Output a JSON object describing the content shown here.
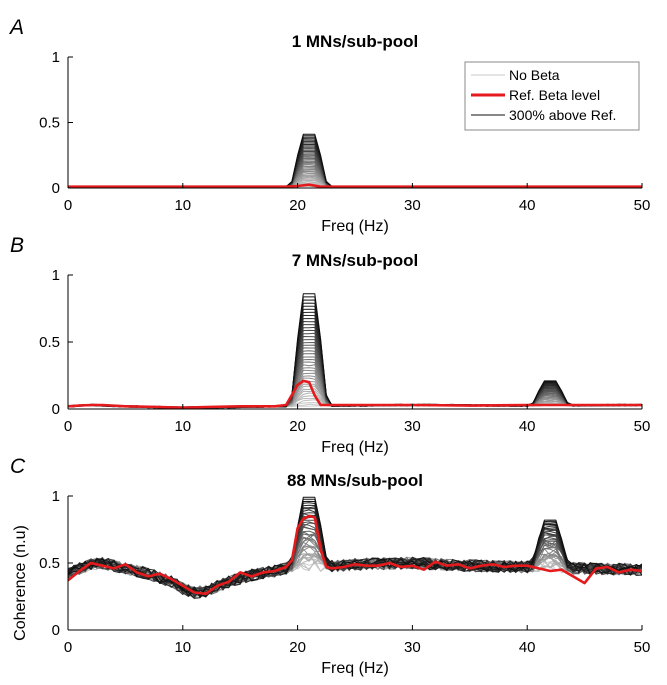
{
  "chart_data": [
    {
      "panel": "A",
      "type": "line",
      "title": "1 MNs/sub-pool",
      "xlabel": "Freq (Hz)",
      "ylabel": "",
      "xlim": [
        0,
        50
      ],
      "ylim": [
        0,
        1
      ],
      "xticks": [
        0,
        10,
        20,
        30,
        40,
        50
      ],
      "yticks": [
        0,
        0.5,
        1
      ],
      "ytick_labels": [
        "0",
        "0.5",
        "1"
      ],
      "legend": {
        "position": "top-right",
        "entries": [
          {
            "label": "No Beta",
            "color": "#c8c8c8"
          },
          {
            "label": "Ref. Beta level",
            "color": "#e41a1c"
          },
          {
            "label": "300% above Ref.",
            "color": "#111111"
          }
        ]
      },
      "background": {
        "points": [
          [
            0,
            0.01
          ],
          [
            20,
            0.01
          ],
          [
            42,
            0.01
          ],
          [
            50,
            0.01
          ]
        ]
      },
      "peaks": [
        {
          "center": 21,
          "max": 0.41
        },
        {
          "center": 42,
          "max": 0.015
        }
      ],
      "series": [
        {
          "name": "Ref. Beta level",
          "color": "#e41a1c",
          "x": [
            0,
            10,
            19,
            20,
            21,
            22,
            30,
            40,
            42,
            50
          ],
          "y": [
            0.01,
            0.01,
            0.01,
            0.015,
            0.025,
            0.01,
            0.01,
            0.01,
            0.01,
            0.01
          ]
        }
      ]
    },
    {
      "panel": "B",
      "type": "line",
      "title": "7 MNs/sub-pool",
      "xlabel": "Freq (Hz)",
      "ylabel": "",
      "xlim": [
        0,
        50
      ],
      "ylim": [
        0,
        1
      ],
      "xticks": [
        0,
        10,
        20,
        30,
        40,
        50
      ],
      "yticks": [
        0,
        0.5,
        1
      ],
      "ytick_labels": [
        "0",
        "0.5",
        "1"
      ],
      "background": {
        "points": [
          [
            0,
            0.02
          ],
          [
            2,
            0.03
          ],
          [
            5,
            0.02
          ],
          [
            10,
            0.01
          ],
          [
            18,
            0.02
          ],
          [
            30,
            0.03
          ],
          [
            40,
            0.025
          ],
          [
            50,
            0.03
          ]
        ]
      },
      "peaks": [
        {
          "center": 21,
          "max": 0.86
        },
        {
          "center": 42,
          "max": 0.21
        }
      ],
      "series": [
        {
          "name": "Ref. Beta level",
          "color": "#e41a1c",
          "x": [
            0,
            1,
            2,
            3,
            5,
            8,
            10,
            12,
            15,
            18,
            19,
            20,
            20.5,
            21,
            21.5,
            22,
            25,
            30,
            35,
            40,
            41,
            42,
            43,
            45,
            50
          ],
          "y": [
            0.02,
            0.025,
            0.03,
            0.03,
            0.02,
            0.015,
            0.01,
            0.015,
            0.02,
            0.02,
            0.03,
            0.18,
            0.21,
            0.2,
            0.1,
            0.03,
            0.03,
            0.03,
            0.025,
            0.03,
            0.03,
            0.03,
            0.03,
            0.03,
            0.03
          ]
        }
      ]
    },
    {
      "panel": "C",
      "type": "line",
      "title": "88 MNs/sub-pool",
      "xlabel": "Freq (Hz)",
      "ylabel": "Coherence (n.u)",
      "xlim": [
        0,
        50
      ],
      "ylim": [
        0,
        1
      ],
      "xticks": [
        0,
        10,
        20,
        30,
        40,
        50
      ],
      "yticks": [
        0,
        0.5,
        1
      ],
      "ytick_labels": [
        "0",
        "0.5",
        "1"
      ],
      "background": {
        "points": [
          [
            0,
            0.42
          ],
          [
            1,
            0.46
          ],
          [
            2,
            0.49
          ],
          [
            3,
            0.5
          ],
          [
            5,
            0.46
          ],
          [
            7,
            0.42
          ],
          [
            9,
            0.36
          ],
          [
            10,
            0.31
          ],
          [
            11,
            0.28
          ],
          [
            12,
            0.29
          ],
          [
            14,
            0.36
          ],
          [
            16,
            0.41
          ],
          [
            18,
            0.44
          ],
          [
            19,
            0.46
          ],
          [
            22,
            0.47
          ],
          [
            25,
            0.49
          ],
          [
            30,
            0.5
          ],
          [
            35,
            0.48
          ],
          [
            40,
            0.47
          ],
          [
            45,
            0.46
          ],
          [
            50,
            0.45
          ]
        ]
      },
      "peaks": [
        {
          "center": 21,
          "max": 0.99
        },
        {
          "center": 42,
          "max": 0.82
        }
      ],
      "series": [
        {
          "name": "Ref. Beta level",
          "color": "#e41a1c",
          "x": [
            0,
            1,
            2,
            3,
            4,
            5,
            6,
            7,
            8,
            9,
            10,
            11,
            12,
            13,
            14,
            15,
            16,
            17,
            18,
            19,
            19.5,
            20,
            20.5,
            21,
            21.5,
            22,
            22.5,
            23,
            24,
            25,
            26,
            27,
            28,
            29,
            30,
            31,
            32,
            33,
            34,
            35,
            36,
            37,
            38,
            39,
            40,
            41,
            42,
            43,
            44,
            45,
            46,
            47,
            48,
            49,
            50
          ],
          "y": [
            0.37,
            0.44,
            0.5,
            0.48,
            0.46,
            0.49,
            0.43,
            0.4,
            0.42,
            0.38,
            0.33,
            0.28,
            0.27,
            0.33,
            0.36,
            0.43,
            0.4,
            0.43,
            0.44,
            0.47,
            0.52,
            0.76,
            0.83,
            0.85,
            0.84,
            0.6,
            0.47,
            0.46,
            0.47,
            0.49,
            0.48,
            0.48,
            0.5,
            0.47,
            0.48,
            0.45,
            0.51,
            0.48,
            0.49,
            0.46,
            0.48,
            0.49,
            0.47,
            0.48,
            0.48,
            0.46,
            0.44,
            0.45,
            0.4,
            0.35,
            0.46,
            0.47,
            0.43,
            0.45,
            0.44
          ]
        }
      ]
    }
  ]
}
